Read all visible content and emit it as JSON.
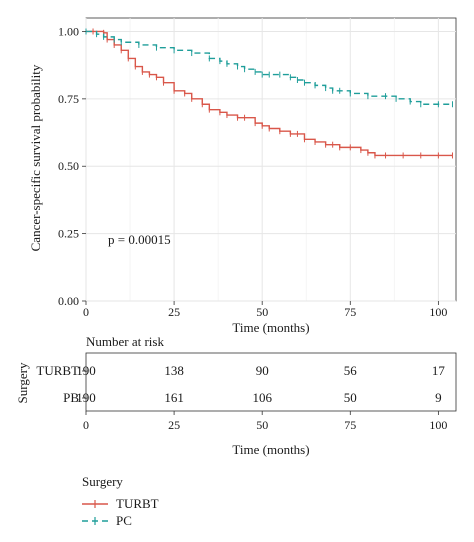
{
  "colors": {
    "turbt": "#d9574a",
    "pb": "#1f9e9a",
    "grid": "#e6e6e6",
    "panel_border": "#333333"
  },
  "chart_data": [
    {
      "type": "line",
      "title": "",
      "xlabel": "Time (months)",
      "ylabel": "Cancer-specific survival probability",
      "xlim": [
        0,
        105
      ],
      "ylim": [
        0,
        1.05
      ],
      "x_ticks": [
        0,
        25,
        50,
        75,
        100
      ],
      "y_ticks": [
        0.0,
        0.25,
        0.5,
        0.75,
        1.0
      ],
      "x_tick_labels": [
        "0",
        "25",
        "50",
        "75",
        "100"
      ],
      "y_tick_labels": [
        "0.00",
        "0.25",
        "0.50",
        "0.75",
        "1.00"
      ],
      "grid": true,
      "annotation": "p = 0.00015",
      "series": [
        {
          "name": "TURBT",
          "x": [
            0,
            2,
            5,
            6,
            8,
            10,
            12,
            14,
            16,
            18,
            20,
            22,
            25,
            28,
            30,
            33,
            35,
            38,
            40,
            43,
            45,
            48,
            50,
            52,
            55,
            58,
            60,
            62,
            65,
            68,
            70,
            72,
            75,
            78,
            80,
            82,
            85,
            90,
            95,
            100,
            104
          ],
          "y": [
            1.0,
            1.0,
            0.995,
            0.97,
            0.95,
            0.93,
            0.9,
            0.87,
            0.85,
            0.84,
            0.83,
            0.81,
            0.78,
            0.77,
            0.75,
            0.73,
            0.71,
            0.7,
            0.69,
            0.68,
            0.68,
            0.66,
            0.65,
            0.64,
            0.63,
            0.62,
            0.62,
            0.6,
            0.59,
            0.58,
            0.58,
            0.57,
            0.57,
            0.56,
            0.55,
            0.54,
            0.54,
            0.54,
            0.54,
            0.54,
            0.54
          ]
        },
        {
          "name": "PC",
          "x": [
            0,
            3,
            5,
            8,
            10,
            15,
            20,
            25,
            30,
            35,
            38,
            40,
            43,
            45,
            48,
            50,
            52,
            55,
            58,
            60,
            62,
            65,
            68,
            70,
            72,
            75,
            80,
            85,
            88,
            92,
            95,
            100,
            104
          ],
          "y": [
            1.0,
            0.99,
            0.98,
            0.97,
            0.96,
            0.95,
            0.94,
            0.93,
            0.92,
            0.9,
            0.89,
            0.88,
            0.87,
            0.86,
            0.85,
            0.84,
            0.84,
            0.84,
            0.83,
            0.82,
            0.81,
            0.8,
            0.79,
            0.78,
            0.78,
            0.77,
            0.76,
            0.76,
            0.75,
            0.74,
            0.73,
            0.73,
            0.73
          ]
        }
      ]
    },
    {
      "type": "table",
      "title": "Number at risk",
      "xlabel": "Time (months)",
      "ylabel": "Surgery",
      "x_ticks": [
        0,
        25,
        50,
        75,
        100
      ],
      "x_tick_labels": [
        "0",
        "25",
        "50",
        "75",
        "100"
      ],
      "rows": [
        {
          "label": "TURBT",
          "values": [
            "190",
            "138",
            "90",
            "56",
            "17"
          ]
        },
        {
          "label": "PB",
          "values": [
            "190",
            "161",
            "106",
            "50",
            "9"
          ]
        }
      ]
    }
  ],
  "legend": {
    "title": "Surgery",
    "items": [
      {
        "label": "TURBT",
        "color": "#d9574a"
      },
      {
        "label": "PC",
        "color": "#1f9e9a"
      }
    ]
  }
}
